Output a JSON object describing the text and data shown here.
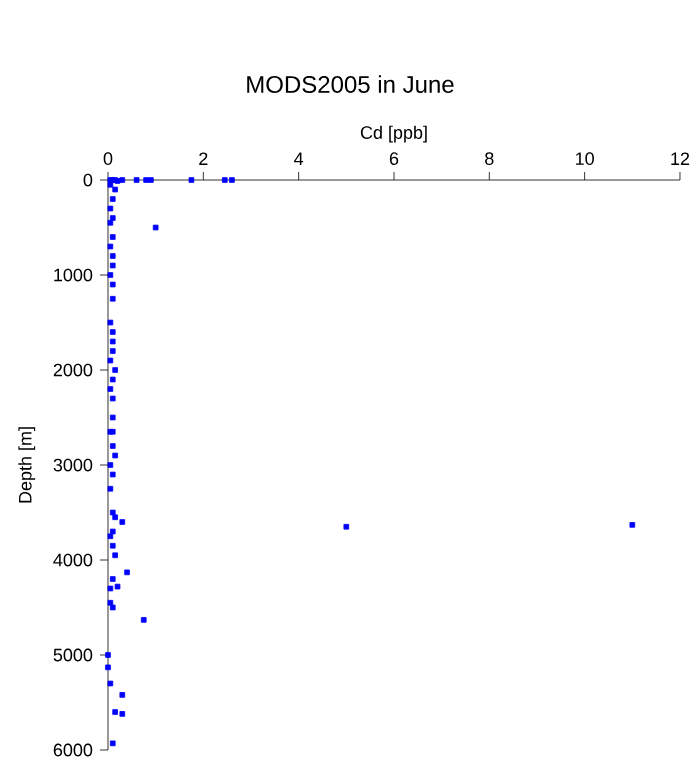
{
  "chart_data": {
    "type": "scatter",
    "title": "MODS2005 in June",
    "xlabel": "Cd [ppb]",
    "ylabel": "Depth [m]",
    "xlim": [
      0,
      12
    ],
    "ylim": [
      6000,
      0
    ],
    "xticks": [
      0,
      2,
      4,
      6,
      8,
      10,
      12
    ],
    "yticks": [
      0,
      1000,
      2000,
      3000,
      4000,
      5000,
      6000
    ],
    "marker": "square",
    "series": [
      {
        "color": "#0000ff",
        "x": [
          0.05,
          0.1,
          0.15,
          0.2,
          0.3,
          0.6,
          0.8,
          0.9,
          1.75,
          2.45,
          2.6,
          0.05,
          0.15,
          0.1,
          0.05,
          0.1,
          1.0,
          0.05,
          0.1,
          0.05,
          0.1,
          0.1,
          0.05,
          0.1,
          0.1,
          0.05,
          0.1,
          0.1,
          0.1,
          0.05,
          0.15,
          0.1,
          0.05,
          0.1,
          0.1,
          0.05,
          0.1,
          0.1,
          0.15,
          0.05,
          0.1,
          0.05,
          0.1,
          0.15,
          0.3,
          5.0,
          11.0,
          0.1,
          0.05,
          0.1,
          0.15,
          0.4,
          0.1,
          0.05,
          0.2,
          0.75,
          0.05,
          0.1,
          0.0,
          0.0,
          0.05,
          0.3,
          0.15,
          0.3,
          0.1
        ],
        "values": [
          0,
          0,
          0,
          10,
          0,
          0,
          0,
          0,
          0,
          0,
          0,
          50,
          100,
          200,
          300,
          400,
          500,
          450,
          600,
          700,
          800,
          900,
          1000,
          1100,
          1250,
          1500,
          1600,
          1700,
          1800,
          1900,
          2000,
          2100,
          2200,
          2300,
          2500,
          2650,
          2650,
          2800,
          2900,
          3000,
          3100,
          3250,
          3500,
          3550,
          3600,
          3650,
          3630,
          3700,
          3750,
          3850,
          3950,
          4130,
          4200,
          4300,
          4280,
          4630,
          4450,
          4500,
          5000,
          5130,
          5300,
          5420,
          5600,
          5620,
          5930
        ]
      }
    ]
  }
}
